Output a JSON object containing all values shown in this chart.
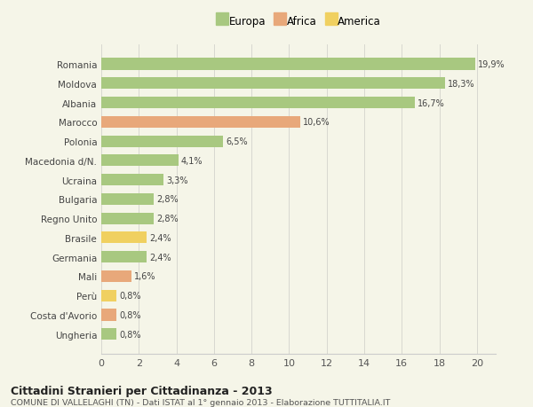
{
  "categories": [
    "Romania",
    "Moldova",
    "Albania",
    "Marocco",
    "Polonia",
    "Macedonia d/N.",
    "Ucraina",
    "Bulgaria",
    "Regno Unito",
    "Brasile",
    "Germania",
    "Mali",
    "Perù",
    "Costa d'Avorio",
    "Ungheria"
  ],
  "values": [
    19.9,
    18.3,
    16.7,
    10.6,
    6.5,
    4.1,
    3.3,
    2.8,
    2.8,
    2.4,
    2.4,
    1.6,
    0.8,
    0.8,
    0.8
  ],
  "labels": [
    "19,9%",
    "18,3%",
    "16,7%",
    "10,6%",
    "6,5%",
    "4,1%",
    "3,3%",
    "2,8%",
    "2,8%",
    "2,4%",
    "2,4%",
    "1,6%",
    "0,8%",
    "0,8%",
    "0,8%"
  ],
  "continents": [
    "Europa",
    "Europa",
    "Europa",
    "Africa",
    "Europa",
    "Europa",
    "Europa",
    "Europa",
    "Europa",
    "America",
    "Europa",
    "Africa",
    "America",
    "Africa",
    "Europa"
  ],
  "colors": {
    "Europa": "#a8c880",
    "Africa": "#e8a87a",
    "America": "#f0d060"
  },
  "legend_items": [
    "Europa",
    "Africa",
    "America"
  ],
  "xlim": [
    0,
    21
  ],
  "xticks": [
    0,
    2,
    4,
    6,
    8,
    10,
    12,
    14,
    16,
    18,
    20
  ],
  "title": "Cittadini Stranieri per Cittadinanza - 2013",
  "subtitle": "COMUNE DI VALLELAGHI (TN) - Dati ISTAT al 1° gennaio 2013 - Elaborazione TUTTITALIA.IT",
  "bg_color": "#f5f5e8"
}
